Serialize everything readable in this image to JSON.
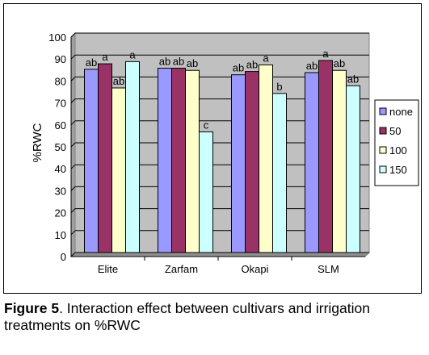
{
  "chart_data": {
    "type": "bar",
    "title": "",
    "xlabel": "",
    "ylabel": "%RWC",
    "ylim": [
      0,
      100
    ],
    "yticks": [
      0,
      10,
      20,
      30,
      40,
      50,
      60,
      70,
      80,
      90,
      100
    ],
    "grid": true,
    "legend_position": "right",
    "categories": [
      "Elite",
      "Zarfam",
      "Okapi",
      "SLM"
    ],
    "series": [
      {
        "name": "none",
        "color": "#9999FF",
        "values": [
          83.5,
          84,
          81,
          82
        ],
        "labels": [
          "ab",
          "ab",
          "ab",
          "ab"
        ]
      },
      {
        "name": "50",
        "color": "#993366",
        "values": [
          86,
          84,
          82.5,
          87.5
        ],
        "labels": [
          "a",
          "ab",
          "ab",
          "a"
        ]
      },
      {
        "name": "100",
        "color": "#FFFFCC",
        "values": [
          75,
          83,
          85.5,
          83
        ],
        "labels": [
          "ab",
          "ab",
          "a",
          "ab"
        ]
      },
      {
        "name": "150",
        "color": "#CCFFFF",
        "values": [
          87,
          55,
          72.5,
          76
        ],
        "labels": [
          "a",
          "c",
          "b",
          "ab"
        ]
      }
    ],
    "plot_background": "#C0C0C0"
  },
  "caption": {
    "lead": "Figure 5",
    "text": ". Interaction effect between cultivars and irrigation treatments on %RWC"
  }
}
